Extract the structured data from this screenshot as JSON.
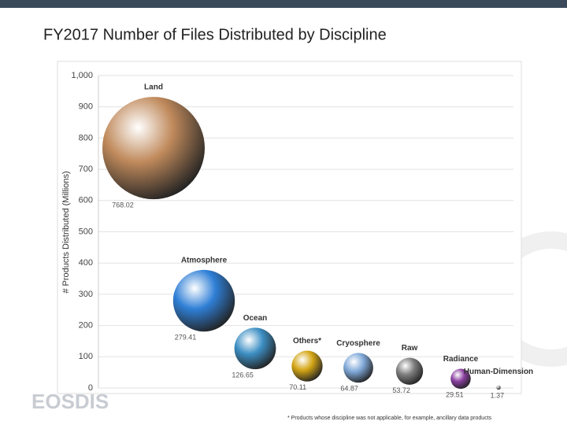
{
  "chart_data": {
    "type": "bubble",
    "title": "FY2017 Number of Files Distributed by Discipline",
    "y_label": "# Products Distributed (Millions)",
    "categories": [
      "Land",
      "Atmosphere",
      "Ocean",
      "Others*",
      "Cryosphere",
      "Raw",
      "Radiance",
      "Human-Dimension"
    ],
    "values": [
      768.02,
      279.41,
      126.65,
      70.11,
      64.87,
      53.72,
      29.51,
      1.37
    ],
    "colors": [
      "#c08a5c",
      "#2f7fd6",
      "#3d8fc4",
      "#d4a514",
      "#7fa8d8",
      "#7d7d7d",
      "#8a3fa0",
      "#999999"
    ],
    "ylim": [
      0,
      1000
    ],
    "yticks": [
      0,
      100,
      200,
      300,
      400,
      500,
      600,
      700,
      800,
      900,
      {
        "value": 1000,
        "label": "1,000"
      }
    ],
    "grid": true,
    "footnote": "* Products whose discipline was not applicable, for example, ancillary data products",
    "logo_text": "EOSDIS"
  }
}
